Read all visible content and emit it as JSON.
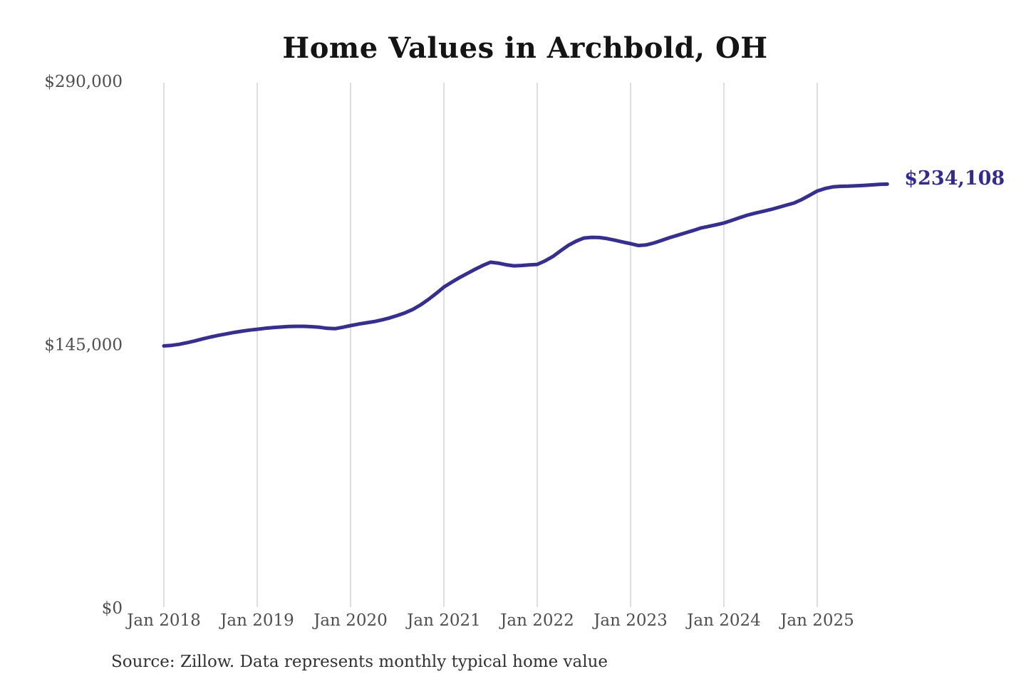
{
  "title": "Home Values in Archbold, OH",
  "source_note": "Source: Zillow. Data represents monthly typical home value",
  "end_label": "$234,108",
  "colors": {
    "line": "#372f8e",
    "end_label": "#332c8e",
    "grid": "#cccccc",
    "axis_text": "#4f4f4f",
    "title_text": "#141414",
    "source_text": "#333333",
    "background": "#ffffff"
  },
  "chart_data": {
    "type": "line",
    "title": "Home Values in Archbold, OH",
    "xlabel": "",
    "ylabel": "",
    "ylim": [
      0,
      290000
    ],
    "grid": "vertical-only",
    "legend": "none",
    "x_start": "2018-01",
    "x_frequency": "monthly",
    "x_tick_labels": [
      "Jan 2018",
      "Jan 2019",
      "Jan 2020",
      "Jan 2021",
      "Jan 2022",
      "Jan 2023",
      "Jan 2024",
      "Jan 2025"
    ],
    "y_ticks": [
      {
        "value": 0,
        "label": "$0"
      },
      {
        "value": 145000,
        "label": "$145,000"
      },
      {
        "value": 290000,
        "label": "$290,000"
      }
    ],
    "final_value": 234108,
    "final_value_label": "$234,108",
    "series_name": "Typical home value",
    "values": [
      145000,
      145300,
      145900,
      146800,
      147800,
      148900,
      149900,
      150800,
      151600,
      152400,
      153100,
      153700,
      154200,
      154700,
      155100,
      155400,
      155700,
      155800,
      155800,
      155600,
      155300,
      154700,
      154500,
      155300,
      156200,
      157000,
      157700,
      158400,
      159300,
      160400,
      161700,
      163200,
      165100,
      167600,
      170600,
      173900,
      177400,
      180100,
      182600,
      184900,
      187200,
      189300,
      191100,
      190600,
      189700,
      189100,
      189300,
      189600,
      189900,
      191800,
      194200,
      197400,
      200400,
      202700,
      204400,
      204800,
      204700,
      204100,
      203200,
      202200,
      201300,
      200300,
      200600,
      201700,
      203100,
      204600,
      205900,
      207200,
      208500,
      209900,
      210800,
      211700,
      212700,
      214100,
      215600,
      217000,
      218100,
      219100,
      220100,
      221300,
      222500,
      223700,
      225600,
      227900,
      230300,
      231700,
      232600,
      232900,
      233000,
      233200,
      233400,
      233700,
      234000,
      234108
    ]
  }
}
